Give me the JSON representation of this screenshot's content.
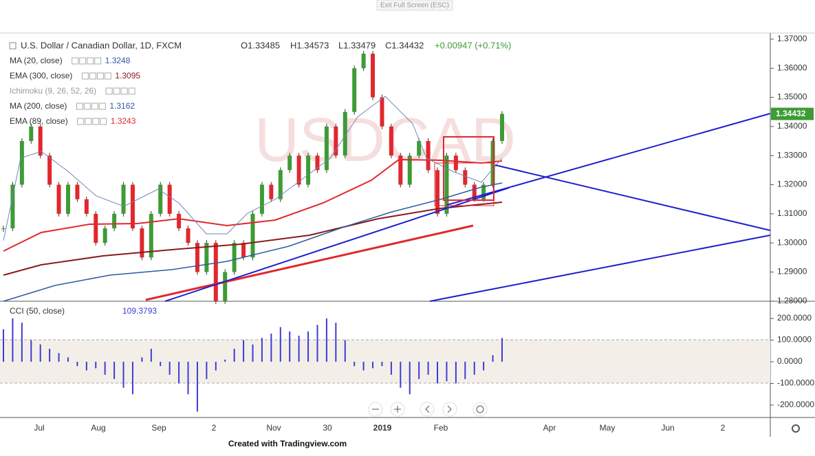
{
  "top_button": "Exit Full Screen (ESC)",
  "header": {
    "symbol": "U.S. Dollar / Canadian Dollar, 1D, FXCM",
    "open": "O1.33485",
    "high": "H1.34573",
    "low": "L1.33479",
    "close": "C1.34432",
    "change": "+0.00947 (+0.71%)"
  },
  "watermark": "USDCAD",
  "indicators": [
    {
      "name": "MA (20, close)",
      "value": "1.3248",
      "color": "#2c5aa0"
    },
    {
      "name": "EMA (300, close)",
      "value": "1.3095",
      "color": "#8b1a1a"
    },
    {
      "name": "Ichimoku (9, 26, 52, 26)",
      "value": null,
      "color": "#999999"
    },
    {
      "name": "MA (200, close)",
      "value": "1.3162",
      "color": "#2c5aa0"
    },
    {
      "name": "EMA (89, close)",
      "value": "1.3243",
      "color": "#e0282e"
    }
  ],
  "chart_data": {
    "type": "candlestick",
    "values": [
      1.305,
      1.32,
      1.335,
      1.34,
      1.33,
      1.32,
      1.31,
      1.32,
      1.315,
      1.31,
      1.3,
      1.305,
      1.31,
      1.32,
      1.305,
      1.295,
      1.31,
      1.32,
      1.31,
      1.305,
      1.3,
      1.29,
      1.3,
      1.28,
      1.29,
      1.3,
      1.295,
      1.31,
      1.32,
      1.315,
      1.325,
      1.33,
      1.32,
      1.33,
      1.325,
      1.34,
      1.33,
      1.345,
      1.36,
      1.365,
      1.35,
      1.34,
      1.33,
      1.32,
      1.33,
      1.335,
      1.325,
      1.31,
      1.33,
      1.325,
      1.32,
      1.315,
      1.32,
      1.335,
      1.34432
    ],
    "up_color": "#3e9b36",
    "down_color": "#e0282e",
    "ylim": [
      1.2802,
      1.3721
    ],
    "yticks": [
      {
        "value": 1.37,
        "label": "1.37000"
      },
      {
        "value": 1.36,
        "label": "1.36000"
      },
      {
        "value": 1.35,
        "label": "1.35000"
      },
      {
        "value": 1.34,
        "label": "1.34000"
      },
      {
        "value": 1.33,
        "label": "1.33000"
      },
      {
        "value": 1.32,
        "label": "1.32000"
      },
      {
        "value": 1.31,
        "label": "1.31000"
      },
      {
        "value": 1.3,
        "label": "1.30000"
      },
      {
        "value": 1.29,
        "label": "1.29000"
      },
      {
        "value": 1.28,
        "label": "1.28000"
      }
    ],
    "last_price": {
      "value": 1.34432,
      "label": "1.34432"
    },
    "x_labels": [
      "Jul",
      "Aug",
      "Sep",
      "2",
      "Nov",
      "30",
      "2019",
      "Feb",
      "Apr",
      "May",
      "Jun",
      "2"
    ]
  },
  "cci": {
    "name": "CCI (50, close)",
    "value_label": "109.3793",
    "color": "#3b3bd6",
    "values": [
      150,
      200,
      180,
      100,
      80,
      60,
      40,
      20,
      -20,
      -40,
      -30,
      -60,
      -80,
      -120,
      -150,
      20,
      60,
      -20,
      -60,
      -100,
      -150,
      -230,
      -80,
      -40,
      10,
      60,
      100,
      80,
      110,
      130,
      160,
      140,
      120,
      140,
      170,
      200,
      180,
      100,
      -20,
      -40,
      -30,
      -20,
      -60,
      -120,
      -150,
      -80,
      -60,
      -100,
      -90,
      -100,
      -80,
      -60,
      -40,
      30,
      109.3793
    ],
    "ylim": [
      -251,
      273
    ],
    "yticks": [
      {
        "value": 200,
        "label": "200.0000"
      },
      {
        "value": 100,
        "label": "100.0000"
      },
      {
        "value": 0,
        "label": "0.0000"
      },
      {
        "value": -100,
        "label": "-100.0000"
      },
      {
        "value": -200,
        "label": "-200.0000"
      }
    ]
  },
  "footer": "Created with Tradingview.com"
}
